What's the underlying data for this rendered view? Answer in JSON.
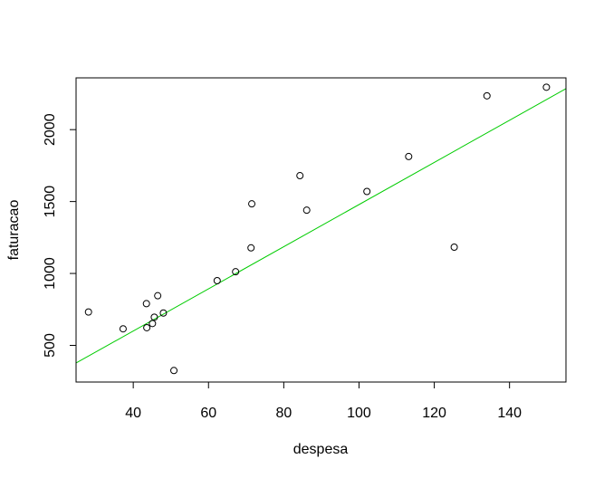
{
  "chart_data": {
    "type": "scatter",
    "title": "",
    "xlabel": "despesa",
    "ylabel": "faturacao",
    "xlim": [
      24.8,
      155.0
    ],
    "ylim": [
      245,
      2360
    ],
    "xticks": [
      40,
      60,
      80,
      100,
      120,
      140
    ],
    "yticks": [
      500,
      1000,
      1500,
      2000
    ],
    "grid": false,
    "legend": "none",
    "points": [
      {
        "x": 28.1,
        "y": 732
      },
      {
        "x": 37.3,
        "y": 615
      },
      {
        "x": 43.5,
        "y": 790
      },
      {
        "x": 43.6,
        "y": 623
      },
      {
        "x": 45.1,
        "y": 652
      },
      {
        "x": 45.6,
        "y": 696
      },
      {
        "x": 46.5,
        "y": 845
      },
      {
        "x": 48.0,
        "y": 725
      },
      {
        "x": 50.8,
        "y": 325
      },
      {
        "x": 62.3,
        "y": 950
      },
      {
        "x": 67.2,
        "y": 1012
      },
      {
        "x": 71.3,
        "y": 1178
      },
      {
        "x": 71.5,
        "y": 1484
      },
      {
        "x": 84.3,
        "y": 1680
      },
      {
        "x": 86.1,
        "y": 1440
      },
      {
        "x": 102.1,
        "y": 1570
      },
      {
        "x": 113.2,
        "y": 1813
      },
      {
        "x": 125.3,
        "y": 1183
      },
      {
        "x": 134.0,
        "y": 2235
      },
      {
        "x": 149.8,
        "y": 2295
      }
    ],
    "regression_line": {
      "intercept": 14,
      "slope": 14.65
    },
    "point_color": "#000000",
    "line_color": "#00cc00"
  }
}
